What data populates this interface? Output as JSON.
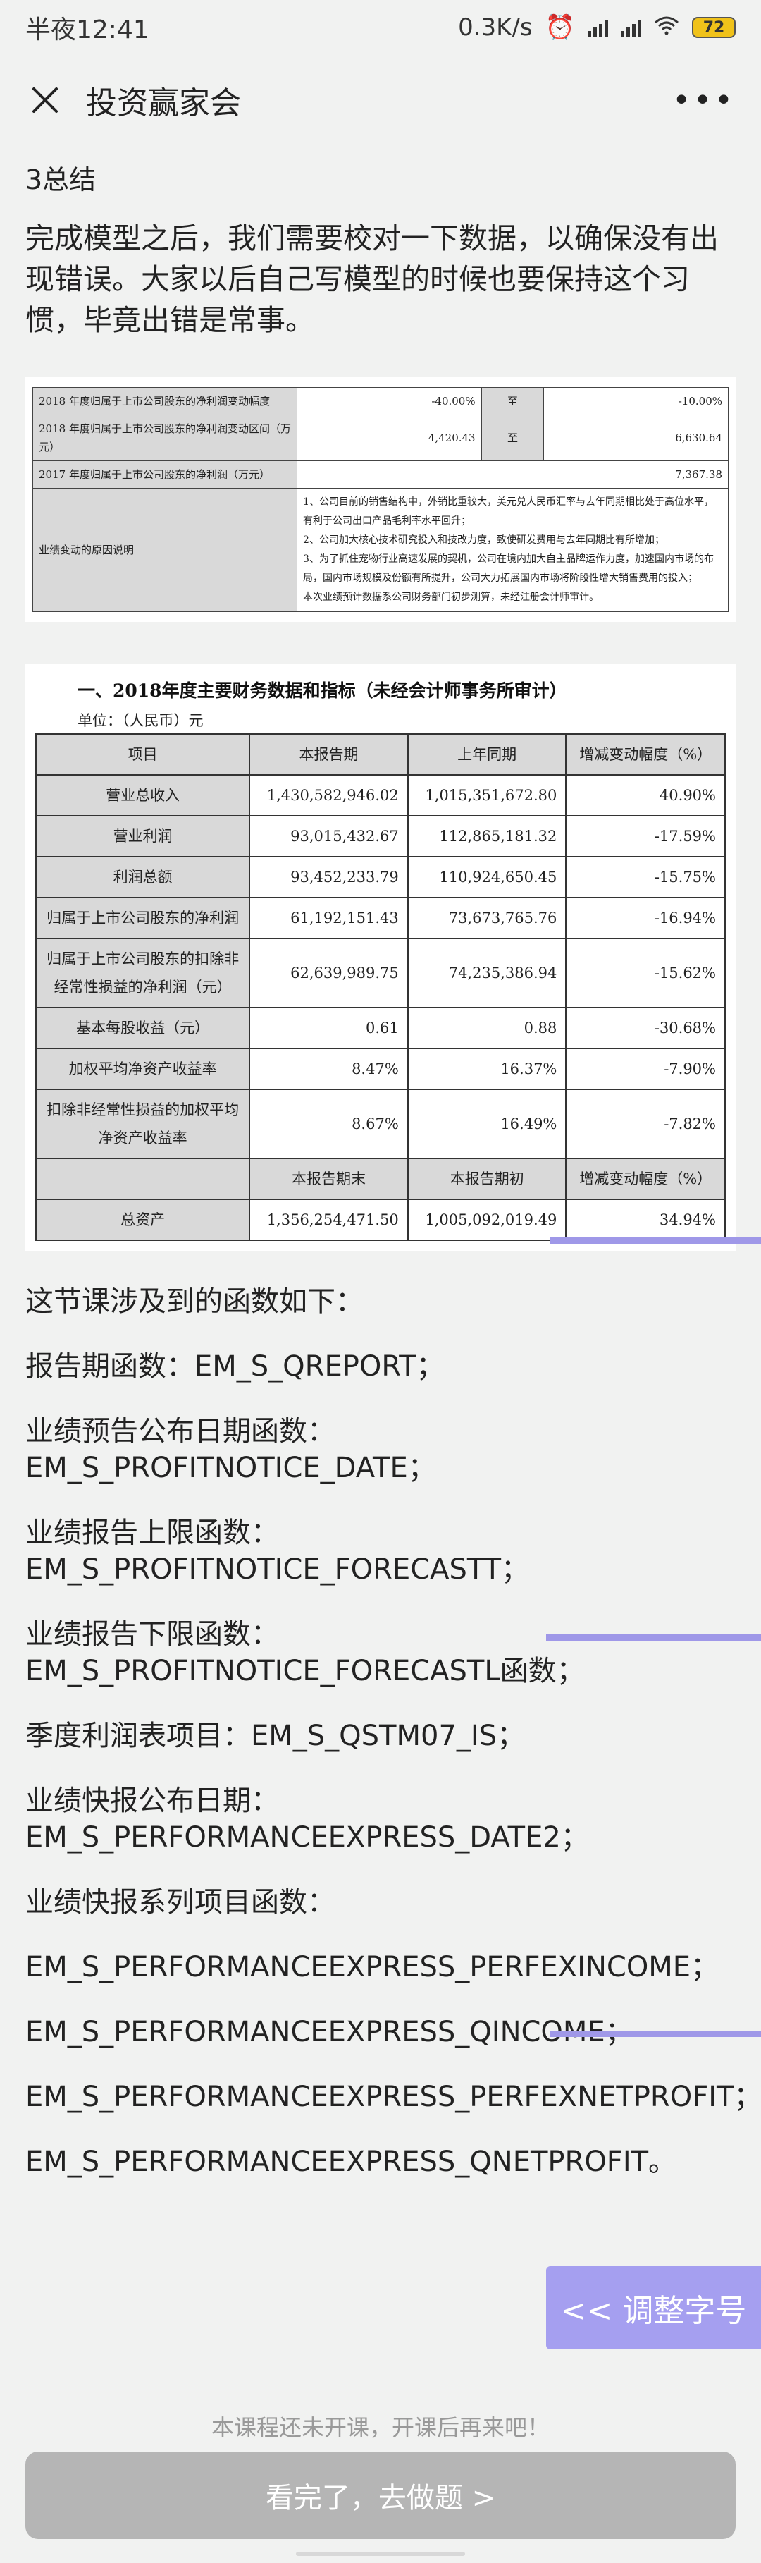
{
  "status": {
    "time": "半夜12:41",
    "speed": "0.3K/s",
    "battery": "72"
  },
  "nav": {
    "title": "投资赢家会"
  },
  "section_title": "3总结",
  "intro": "完成模型之后，我们需要校对一下数据，以确保没有出现错误。大家以后自己写模型的时候也要保持这个习惯，毕竟出错是常事。",
  "table1": {
    "rows": [
      {
        "label": "2018 年度归属于上市公司股东的净利润变动幅度",
        "v1": "-40.00%",
        "to": "至",
        "v2": "-10.00%"
      },
      {
        "label": "2018 年度归属于上市公司股东的净利润变动区间（万元）",
        "v1": "4,420.43",
        "to": "至",
        "v2": "6,630.64"
      }
    ],
    "row3_label": "2017 年度归属于上市公司股东的净利润（万元）",
    "row3_value": "7,367.38",
    "reason_label": "业绩变动的原因说明",
    "reasons": [
      "1、公司目前的销售结构中，外销比重较大，美元兑人民币汇率与去年同期相比处于高位水平，有利于公司出口产品毛利率水平回升；",
      "2、公司加大核心技术研究投入和技改力度，致使研发费用与去年同期比有所增加；",
      "3、为了抓住宠物行业高速发展的契机，公司在境内加大自主品牌运作力度，加速国内市场的布局，国内市场规模及份额有所提升，公司大力拓展国内市场将阶段性增大销售费用的投入；",
      "本次业绩预计数据系公司财务部门初步测算，未经注册会计师审计。"
    ]
  },
  "table2": {
    "heading": "一、2018年度主要财务数据和指标（未经会计师事务所审计）",
    "unit": "单位：（人民币）元",
    "headers": [
      "项目",
      "本报告期",
      "上年同期",
      "增减变动幅度（%）"
    ],
    "rows": [
      [
        "营业总收入",
        "1,430,582,946.02",
        "1,015,351,672.80",
        "40.90%"
      ],
      [
        "营业利润",
        "93,015,432.67",
        "112,865,181.32",
        "-17.59%"
      ],
      [
        "利润总额",
        "93,452,233.79",
        "110,924,650.45",
        "-15.75%"
      ],
      [
        "归属于上市公司股东的净利润",
        "61,192,151.43",
        "73,673,765.76",
        "-16.94%"
      ],
      [
        "归属于上市公司股东的扣除非经常性损益的净利润（元）",
        "62,639,989.75",
        "74,235,386.94",
        "-15.62%"
      ],
      [
        "基本每股收益（元）",
        "0.61",
        "0.88",
        "-30.68%"
      ],
      [
        "加权平均净资产收益率",
        "8.47%",
        "16.37%",
        "-7.90%"
      ],
      [
        "扣除非经常性损益的加权平均净资产收益率",
        "8.67%",
        "16.49%",
        "-7.82%"
      ]
    ],
    "headers2": [
      "",
      "本报告期末",
      "本报告期初",
      "增减变动幅度（%）"
    ],
    "rows2": [
      [
        "总资产",
        "1,356,254,471.50",
        "1,005,092,019.49",
        "34.94%"
      ]
    ]
  },
  "functions": {
    "intro": "这节课涉及到的函数如下：",
    "items": [
      [
        "报告期函数：EM_S_QREPORT；"
      ],
      [
        "业绩预告公布日期函数：",
        "EM_S_PROFITNOTICE_DATE；"
      ],
      [
        "业绩报告上限函数：",
        "EM_S_PROFITNOTICE_FORECASTT；"
      ],
      [
        "业绩报告下限函数：",
        "EM_S_PROFITNOTICE_FORECASTL函数；"
      ],
      [
        "季度利润表项目：EM_S_QSTM07_IS；"
      ],
      [
        "业绩快报公布日期：",
        "EM_S_PERFORMANCEEXPRESS_DATE2；"
      ],
      [
        "业绩快报系列项目函数："
      ],
      [
        "EM_S_PERFORMANCEEXPRESS_PERFEXINCOME；"
      ],
      [
        "EM_S_PERFORMANCEEXPRESS_QINCOME；"
      ],
      [
        "EM_S_PERFORMANCEEXPRESS_PERFEXNETPROFIT；"
      ],
      [
        "EM_S_PERFORMANCEEXPRESS_QNETPROFIT。"
      ]
    ]
  },
  "adjust_font_label": "<< 调整字号",
  "footer_note": "本课程还未开课，开课后再来吧！",
  "done_button": "看完了，去做题 >",
  "colors": {
    "accent_purple": "#9f98e8",
    "button_gray": "#b5b5b5",
    "battery": "#f0c21a"
  }
}
